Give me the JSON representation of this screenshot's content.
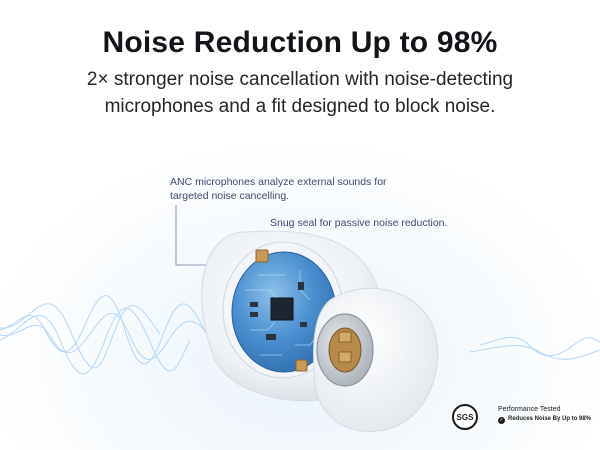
{
  "header": {
    "title": "Noise Reduction Up to 98%",
    "subtitle": "2× stronger noise cancellation with noise-detecting microphones and a fit designed to block noise."
  },
  "callouts": {
    "anc": "ANC microphones analyze external sounds for targeted noise cancelling.",
    "seal": "Snug seal for passive noise reduction."
  },
  "badge": {
    "seal_text": "SGS",
    "title": "Performance Tested",
    "claim": "Reduces Noise By Up to 98%"
  },
  "colors": {
    "accent": "#2d6fb0",
    "callout_text": "#3b4a6b",
    "board_blue": "#3a82c8"
  },
  "icons": [
    "sgs-seal-icon",
    "check-icon"
  ]
}
